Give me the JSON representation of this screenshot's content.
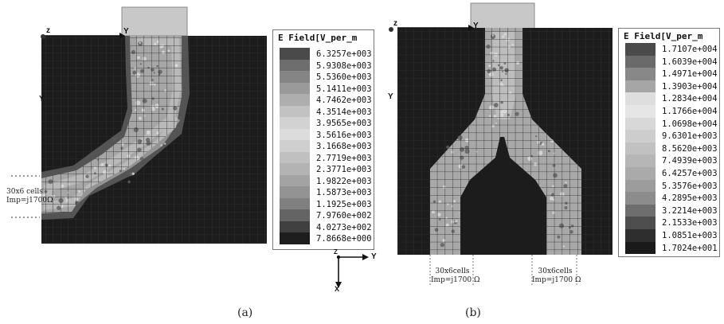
{
  "panel_a": {
    "legend_title": "E Field[V_per_m",
    "legend_values": [
      "6.3257e+003",
      "5.9308e+003",
      "5.5360e+003",
      "5.1411e+003",
      "4.7462e+003",
      "4.3514e+003",
      "3.9565e+003",
      "3.5616e+003",
      "3.1668e+003",
      "2.7719e+003",
      "2.3771e+003",
      "1.9822e+003",
      "1.5873e+003",
      "1.1925e+003",
      "7.9760e+002",
      "4.0273e+002",
      "7.8668e+000"
    ],
    "legend_colors": [
      "#4a4a4a",
      "#6e6e6e",
      "#858585",
      "#9a9a9a",
      "#aeaeae",
      "#c2c2c2",
      "#d2d2d2",
      "#dcdcdc",
      "#cfcfcf",
      "#c0c0c0",
      "#b3b3b3",
      "#a3a3a3",
      "#939393",
      "#7f7f7f",
      "#646464",
      "#404040",
      "#1e1e1e"
    ],
    "port_note_line1": "30x6 cells",
    "port_note_line2": "Imp=j1700Ω",
    "axis_z": "z",
    "axis_y": "Y",
    "axis_y_side": "Y",
    "caption": "(a)"
  },
  "panel_b": {
    "legend_title": "E Field[V_per_m",
    "legend_values": [
      "1.7107e+004",
      "1.6039e+004",
      "1.4971e+004",
      "1.3903e+004",
      "1.2834e+004",
      "1.1766e+004",
      "1.0698e+004",
      "9.6301e+003",
      "8.5620e+003",
      "7.4939e+003",
      "6.4257e+003",
      "5.3576e+003",
      "4.2895e+003",
      "3.2214e+003",
      "2.1533e+003",
      "1.0851e+003",
      "1.7024e+001"
    ],
    "legend_colors": [
      "#4a4a4a",
      "#6a6a6a",
      "#888888",
      "#a6a6a6",
      "#dedede",
      "#e6e6e6",
      "#d8d8d8",
      "#cdcdcd",
      "#c1c1c1",
      "#b6b6b6",
      "#aaaaaa",
      "#9c9c9c",
      "#8c8c8c",
      "#6e6e6e",
      "#4e4e4e",
      "#2e2e2e",
      "#1a1a1a"
    ],
    "left_port_line1": "30x6cells",
    "left_port_line2": "Imp=j1700 Ω",
    "right_port_line1": "30x6cells",
    "right_port_line2": "Imp=j1700 Ω",
    "axis_z": "z",
    "axis_y": "Y",
    "axis_y_side": "Y",
    "caption": "(b)"
  },
  "coord_axes": {
    "z": "Z",
    "y": "Y",
    "x": "X"
  }
}
